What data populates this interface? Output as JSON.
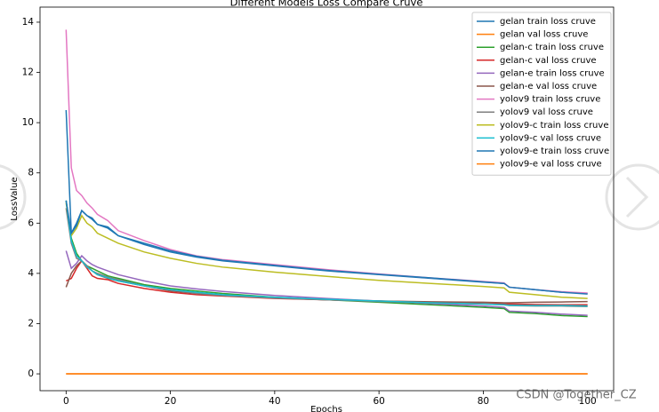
{
  "chart_data": {
    "type": "line",
    "title": "Different Models Loss Compare Cruve",
    "xlabel": "Epochs",
    "ylabel": "LossValue",
    "x": [
      0,
      1,
      2,
      3,
      4,
      5,
      6,
      8,
      10,
      15,
      20,
      25,
      30,
      40,
      50,
      60,
      70,
      80,
      84,
      85,
      90,
      95,
      100
    ],
    "xlim": [
      -5,
      105
    ],
    "xticks": [
      0,
      20,
      40,
      60,
      80,
      100
    ],
    "ylim": [
      -0.67,
      14.6
    ],
    "yticks": [
      0,
      2,
      4,
      6,
      8,
      10,
      12,
      14
    ],
    "legend": "upper right",
    "series": [
      {
        "name": "gelan train loss cruve",
        "color": "#1f77b4",
        "values": [
          10.5,
          5.6,
          6.0,
          6.5,
          6.3,
          6.2,
          5.95,
          5.85,
          5.5,
          5.15,
          4.85,
          4.65,
          4.5,
          4.3,
          4.1,
          3.95,
          3.8,
          3.65,
          3.6,
          3.45,
          3.35,
          3.25,
          3.2
        ]
      },
      {
        "name": "gelan val loss cruve",
        "color": "#ff7f0e",
        "values": [
          0,
          0,
          0,
          0,
          0,
          0,
          0,
          0,
          0,
          0,
          0,
          0,
          0,
          0,
          0,
          0,
          0,
          0,
          0,
          0,
          0,
          0,
          0
        ]
      },
      {
        "name": "gelan-c train loss cruve",
        "color": "#2ca02c",
        "values": [
          6.9,
          5.4,
          4.8,
          4.5,
          4.3,
          4.2,
          4.1,
          3.9,
          3.8,
          3.55,
          3.4,
          3.3,
          3.2,
          3.05,
          2.95,
          2.85,
          2.75,
          2.65,
          2.6,
          2.45,
          2.4,
          2.32,
          2.28
        ]
      },
      {
        "name": "gelan-c val loss cruve",
        "color": "#d62728",
        "values": [
          3.7,
          3.8,
          4.2,
          4.5,
          4.2,
          3.9,
          3.8,
          3.75,
          3.6,
          3.4,
          3.25,
          3.15,
          3.1,
          3.0,
          2.95,
          2.9,
          2.85,
          2.8,
          2.78,
          2.78,
          2.76,
          2.75,
          2.75
        ]
      },
      {
        "name": "gelan-e train loss cruve",
        "color": "#9467bd",
        "values": [
          4.9,
          4.2,
          4.4,
          4.7,
          4.5,
          4.35,
          4.25,
          4.1,
          3.95,
          3.7,
          3.5,
          3.38,
          3.28,
          3.12,
          3.0,
          2.9,
          2.8,
          2.7,
          2.65,
          2.5,
          2.45,
          2.38,
          2.33
        ]
      },
      {
        "name": "gelan-e val loss cruve",
        "color": "#8c564b",
        "values": [
          3.45,
          4.0,
          4.3,
          4.5,
          4.3,
          4.1,
          3.95,
          3.8,
          3.7,
          3.5,
          3.3,
          3.2,
          3.12,
          3.02,
          2.95,
          2.9,
          2.87,
          2.85,
          2.83,
          2.83,
          2.85,
          2.86,
          2.88
        ]
      },
      {
        "name": "yolov9 train loss cruve",
        "color": "#e377c2",
        "values": [
          13.7,
          8.2,
          7.3,
          7.1,
          6.8,
          6.6,
          6.35,
          6.1,
          5.7,
          5.3,
          4.95,
          4.7,
          4.55,
          4.35,
          4.15,
          3.98,
          3.82,
          3.68,
          3.62,
          3.45,
          3.35,
          3.27,
          3.22
        ]
      },
      {
        "name": "yolov9 val loss cruve",
        "color": "#7f7f7f",
        "values": [
          6.6,
          5.2,
          4.6,
          4.5,
          4.3,
          4.1,
          4.0,
          3.85,
          3.75,
          3.5,
          3.35,
          3.2,
          3.12,
          3.02,
          2.95,
          2.88,
          2.82,
          2.78,
          2.75,
          2.72,
          2.7,
          2.7,
          2.68
        ]
      },
      {
        "name": "yolov9-c train loss cruve",
        "color": "#bcbd22",
        "values": [
          6.8,
          5.5,
          5.8,
          6.3,
          6.0,
          5.85,
          5.6,
          5.4,
          5.2,
          4.85,
          4.6,
          4.4,
          4.25,
          4.05,
          3.88,
          3.72,
          3.6,
          3.48,
          3.42,
          3.25,
          3.15,
          3.05,
          3.0
        ]
      },
      {
        "name": "yolov9-c val loss cruve",
        "color": "#17becf",
        "values": [
          6.9,
          5.3,
          4.7,
          4.5,
          4.25,
          4.1,
          3.95,
          3.82,
          3.7,
          3.5,
          3.35,
          3.25,
          3.15,
          3.05,
          2.97,
          2.9,
          2.83,
          2.78,
          2.75,
          2.73,
          2.72,
          2.72,
          2.7
        ]
      },
      {
        "name": "yolov9-e train loss cruve",
        "color": "#1f77b4",
        "values": [
          6.9,
          5.6,
          5.9,
          6.5,
          6.3,
          6.15,
          5.95,
          5.8,
          5.5,
          5.2,
          4.9,
          4.68,
          4.52,
          4.32,
          4.12,
          3.96,
          3.82,
          3.66,
          3.6,
          3.45,
          3.35,
          3.25,
          3.18
        ]
      },
      {
        "name": "yolov9-e val loss cruve",
        "color": "#ff7f0e",
        "values": [
          0,
          0,
          0,
          0,
          0,
          0,
          0,
          0,
          0,
          0,
          0,
          0,
          0,
          0,
          0,
          0,
          0,
          0,
          0,
          0,
          0,
          0,
          0
        ]
      }
    ]
  },
  "watermark": "CSDN @Together_CZ"
}
